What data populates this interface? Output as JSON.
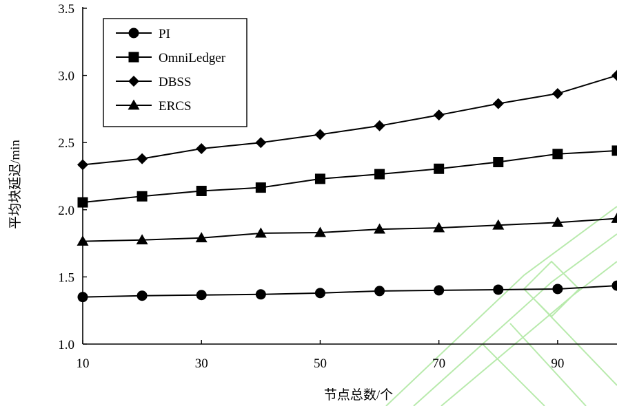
{
  "chart_data": {
    "type": "line",
    "xlabel": "节点总数/个",
    "ylabel": "平均块延迟/min",
    "xlim": [
      10,
      100
    ],
    "ylim": [
      1.0,
      3.5
    ],
    "xticks": [
      10,
      30,
      50,
      70,
      90
    ],
    "yticks": [
      1.0,
      1.5,
      2.0,
      2.5,
      3.0,
      3.5
    ],
    "x": [
      10,
      20,
      30,
      40,
      50,
      60,
      70,
      80,
      90,
      100
    ],
    "legend_position": "top-left",
    "grid": false,
    "series": [
      {
        "name": "PI",
        "marker": "circle",
        "values": [
          1.35,
          1.36,
          1.365,
          1.37,
          1.38,
          1.395,
          1.4,
          1.405,
          1.41,
          1.435
        ]
      },
      {
        "name": "OmniLedger",
        "marker": "square",
        "values": [
          2.055,
          2.1,
          2.14,
          2.165,
          2.23,
          2.265,
          2.305,
          2.355,
          2.415,
          2.44
        ]
      },
      {
        "name": "DBSS",
        "marker": "diamond",
        "values": [
          2.335,
          2.38,
          2.455,
          2.5,
          2.56,
          2.625,
          2.705,
          2.79,
          2.865,
          3.0
        ]
      },
      {
        "name": "ERCS",
        "marker": "triangle",
        "values": [
          1.765,
          1.775,
          1.79,
          1.825,
          1.83,
          1.855,
          1.865,
          1.885,
          1.905,
          1.935
        ]
      }
    ],
    "colors": {
      "line": "#000000",
      "watermark": "#7fd96a"
    }
  }
}
